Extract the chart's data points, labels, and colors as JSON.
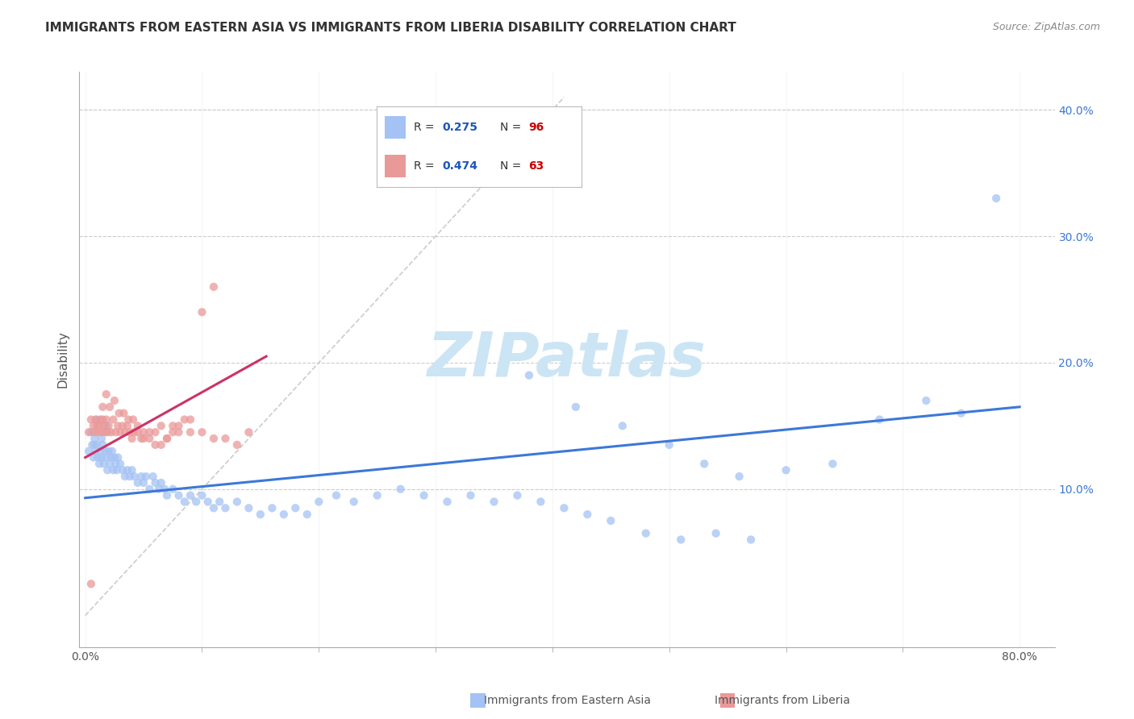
{
  "title": "IMMIGRANTS FROM EASTERN ASIA VS IMMIGRANTS FROM LIBERIA DISABILITY CORRELATION CHART",
  "source": "Source: ZipAtlas.com",
  "ylabel": "Disability",
  "xlim": [
    -0.005,
    0.83
  ],
  "ylim": [
    -0.025,
    0.43
  ],
  "r_eastern_asia": 0.275,
  "n_eastern_asia": 96,
  "r_liberia": 0.474,
  "n_liberia": 63,
  "color_eastern_asia": "#a4c2f4",
  "color_liberia": "#ea9999",
  "color_line_eastern_asia": "#3c78d8",
  "color_line_liberia": "#cc3366",
  "color_diagonal": "#cccccc",
  "background_color": "#ffffff",
  "grid_color": "#cccccc",
  "watermark_color": "#cce5f5",
  "legend_r_color": "#1a56bb",
  "legend_n_color": "#cc0000",
  "ea_x": [
    0.003,
    0.005,
    0.006,
    0.007,
    0.008,
    0.009,
    0.01,
    0.011,
    0.012,
    0.013,
    0.014,
    0.015,
    0.016,
    0.017,
    0.018,
    0.019,
    0.02,
    0.021,
    0.022,
    0.023,
    0.024,
    0.025,
    0.026,
    0.027,
    0.028,
    0.03,
    0.032,
    0.034,
    0.036,
    0.038,
    0.04,
    0.042,
    0.045,
    0.048,
    0.05,
    0.052,
    0.055,
    0.058,
    0.06,
    0.063,
    0.065,
    0.068,
    0.07,
    0.075,
    0.08,
    0.085,
    0.09,
    0.095,
    0.1,
    0.105,
    0.11,
    0.115,
    0.12,
    0.13,
    0.14,
    0.15,
    0.16,
    0.17,
    0.18,
    0.19,
    0.2,
    0.215,
    0.23,
    0.25,
    0.27,
    0.29,
    0.31,
    0.33,
    0.35,
    0.37,
    0.39,
    0.41,
    0.43,
    0.45,
    0.48,
    0.51,
    0.54,
    0.57,
    0.38,
    0.42,
    0.46,
    0.5,
    0.53,
    0.56,
    0.6,
    0.64,
    0.68,
    0.72,
    0.75,
    0.78,
    0.008,
    0.01,
    0.014,
    0.018
  ],
  "ea_y": [
    0.13,
    0.145,
    0.135,
    0.125,
    0.14,
    0.13,
    0.135,
    0.125,
    0.12,
    0.13,
    0.125,
    0.135,
    0.12,
    0.13,
    0.125,
    0.115,
    0.13,
    0.12,
    0.125,
    0.13,
    0.115,
    0.125,
    0.12,
    0.115,
    0.125,
    0.12,
    0.115,
    0.11,
    0.115,
    0.11,
    0.115,
    0.11,
    0.105,
    0.11,
    0.105,
    0.11,
    0.1,
    0.11,
    0.105,
    0.1,
    0.105,
    0.1,
    0.095,
    0.1,
    0.095,
    0.09,
    0.095,
    0.09,
    0.095,
    0.09,
    0.085,
    0.09,
    0.085,
    0.09,
    0.085,
    0.08,
    0.085,
    0.08,
    0.085,
    0.08,
    0.09,
    0.095,
    0.09,
    0.095,
    0.1,
    0.095,
    0.09,
    0.095,
    0.09,
    0.095,
    0.09,
    0.085,
    0.08,
    0.075,
    0.065,
    0.06,
    0.065,
    0.06,
    0.19,
    0.165,
    0.15,
    0.135,
    0.12,
    0.11,
    0.115,
    0.12,
    0.155,
    0.17,
    0.16,
    0.33,
    0.135,
    0.155,
    0.14,
    0.15
  ],
  "lib_x": [
    0.003,
    0.005,
    0.007,
    0.008,
    0.009,
    0.01,
    0.011,
    0.012,
    0.013,
    0.014,
    0.015,
    0.016,
    0.017,
    0.018,
    0.019,
    0.02,
    0.022,
    0.024,
    0.026,
    0.028,
    0.03,
    0.032,
    0.034,
    0.036,
    0.038,
    0.04,
    0.042,
    0.045,
    0.048,
    0.05,
    0.055,
    0.06,
    0.065,
    0.07,
    0.075,
    0.08,
    0.085,
    0.09,
    0.1,
    0.11,
    0.12,
    0.13,
    0.14,
    0.015,
    0.018,
    0.021,
    0.025,
    0.029,
    0.033,
    0.037,
    0.041,
    0.045,
    0.05,
    0.055,
    0.06,
    0.065,
    0.07,
    0.075,
    0.08,
    0.09,
    0.1,
    0.11,
    0.005
  ],
  "lib_y": [
    0.145,
    0.155,
    0.15,
    0.145,
    0.155,
    0.15,
    0.145,
    0.15,
    0.155,
    0.145,
    0.155,
    0.15,
    0.145,
    0.155,
    0.145,
    0.15,
    0.145,
    0.155,
    0.145,
    0.15,
    0.145,
    0.15,
    0.145,
    0.15,
    0.145,
    0.14,
    0.145,
    0.15,
    0.14,
    0.145,
    0.14,
    0.145,
    0.135,
    0.14,
    0.145,
    0.15,
    0.155,
    0.155,
    0.145,
    0.14,
    0.14,
    0.135,
    0.145,
    0.165,
    0.175,
    0.165,
    0.17,
    0.16,
    0.16,
    0.155,
    0.155,
    0.145,
    0.14,
    0.145,
    0.135,
    0.15,
    0.14,
    0.15,
    0.145,
    0.145,
    0.24,
    0.26,
    0.025
  ],
  "ea_line_x0": 0.0,
  "ea_line_x1": 0.8,
  "ea_line_y0": 0.093,
  "ea_line_y1": 0.165,
  "lib_line_x0": 0.0,
  "lib_line_x1": 0.155,
  "lib_line_y0": 0.125,
  "lib_line_y1": 0.205
}
